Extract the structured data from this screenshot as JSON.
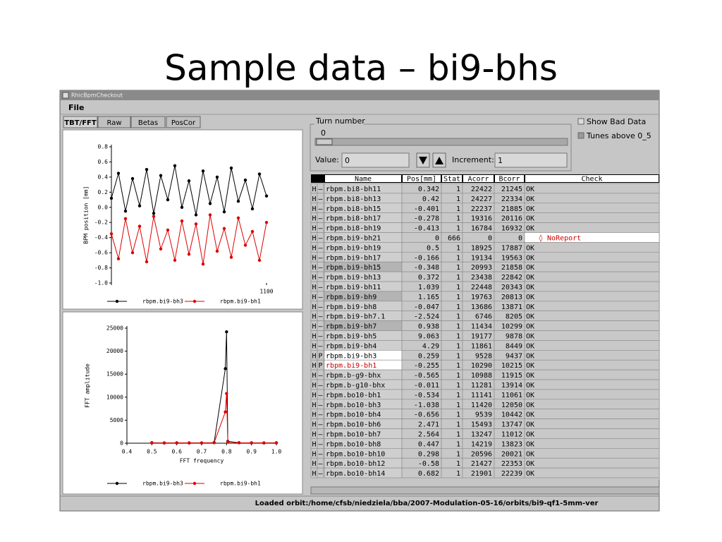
{
  "slide_title": "Sample data – bi9-bhs",
  "window": {
    "title": "RhicBpmCheckout",
    "menu": "File",
    "tabs": [
      "TBT/FFT",
      "Raw",
      "Betas",
      "PosCor"
    ]
  },
  "controls": {
    "turn_label": "Turn number",
    "turn_value": "0",
    "value_label": "Value:",
    "value": "0",
    "increment_label": "Increment:",
    "increment": "1",
    "show_bad": "Show Bad Data",
    "tunes": "Tunes above 0_5"
  },
  "table": {
    "columns": [
      "Name",
      "Pos[mm]",
      "Stat",
      "Acorr",
      "Bcorr",
      "Check"
    ],
    "rows": [
      {
        "flag": "H",
        "mode": "–",
        "name": "rbpm.bi8-bh11",
        "pos": "0.342",
        "stat": "1",
        "acorr": "22422",
        "bcorr": "21245",
        "check": "OK"
      },
      {
        "flag": "H",
        "mode": "–",
        "name": "rbpm.bi8-bh13",
        "pos": "0.42",
        "stat": "1",
        "acorr": "24227",
        "bcorr": "22334",
        "check": "OK"
      },
      {
        "flag": "H",
        "mode": "–",
        "name": "rbpm.bi8-bh15",
        "pos": "-0.401",
        "stat": "1",
        "acorr": "22237",
        "bcorr": "21885",
        "check": "OK"
      },
      {
        "flag": "H",
        "mode": "–",
        "name": "rbpm.bi8-bh17",
        "pos": "-0.278",
        "stat": "1",
        "acorr": "19316",
        "bcorr": "20116",
        "check": "OK"
      },
      {
        "flag": "H",
        "mode": "–",
        "name": "rbpm.bi8-bh19",
        "pos": "-0.413",
        "stat": "1",
        "acorr": "16784",
        "bcorr": "16932",
        "check": "OK"
      },
      {
        "flag": "H",
        "mode": "–",
        "name": "rbpm.bi9-bh21",
        "pos": "0",
        "stat": "666",
        "acorr": "0",
        "bcorr": "0",
        "check": "◊ NoReport",
        "check_bg": "#ffffff",
        "check_color": "#cc0000"
      },
      {
        "flag": "H",
        "mode": "–",
        "name": "rbpm.bi9-bh19",
        "pos": "0.5",
        "stat": "1",
        "acorr": "18925",
        "bcorr": "17887",
        "check": "OK"
      },
      {
        "flag": "H",
        "mode": "–",
        "name": "rbpm.bi9-bh17",
        "pos": "-0.166",
        "stat": "1",
        "acorr": "19134",
        "bcorr": "19563",
        "check": "OK"
      },
      {
        "flag": "H",
        "mode": "–",
        "name": "rbpm.bi9-bh15",
        "pos": "-0.348",
        "stat": "1",
        "acorr": "20993",
        "bcorr": "21858",
        "check": "OK",
        "name_bg": "#b4b4b4"
      },
      {
        "flag": "H",
        "mode": "–",
        "name": "rbpm.bi9-bh13",
        "pos": "0.372",
        "stat": "1",
        "acorr": "23438",
        "bcorr": "22842",
        "check": "OK"
      },
      {
        "flag": "H",
        "mode": "–",
        "name": "rbpm.bi9-bh11",
        "pos": "1.039",
        "stat": "1",
        "acorr": "22448",
        "bcorr": "20343",
        "check": "OK"
      },
      {
        "flag": "H",
        "mode": "–",
        "name": "rbpm.bi9-bh9",
        "pos": "1.165",
        "stat": "1",
        "acorr": "19763",
        "bcorr": "20813",
        "check": "OK",
        "name_bg": "#b4b4b4"
      },
      {
        "flag": "H",
        "mode": "–",
        "name": "rbpm.bi9-bh8",
        "pos": "-0.047",
        "stat": "1",
        "acorr": "13686",
        "bcorr": "13871",
        "check": "OK"
      },
      {
        "flag": "H",
        "mode": "–",
        "name": "rbpm.bi9-bh7.1",
        "pos": "-2.524",
        "stat": "1",
        "acorr": "6746",
        "bcorr": "8205",
        "check": "OK"
      },
      {
        "flag": "H",
        "mode": "–",
        "name": "rbpm.bi9-bh7",
        "pos": "0.938",
        "stat": "1",
        "acorr": "11434",
        "bcorr": "10299",
        "check": "OK",
        "name_bg": "#b4b4b4"
      },
      {
        "flag": "H",
        "mode": "–",
        "name": "rbpm.bi9-bh5",
        "pos": "9.063",
        "stat": "1",
        "acorr": "19177",
        "bcorr": "9878",
        "check": "OK"
      },
      {
        "flag": "H",
        "mode": "–",
        "name": "rbpm.bi9-bh4",
        "pos": "4.29",
        "stat": "1",
        "acorr": "11861",
        "bcorr": "8449",
        "check": "OK"
      },
      {
        "flag": "H",
        "mode": "P",
        "name": "rbpm.bi9-bh3",
        "pos": "0.259",
        "stat": "1",
        "acorr": "9528",
        "bcorr": "9437",
        "check": "OK",
        "name_bg": "#ffffff"
      },
      {
        "flag": "H",
        "mode": "P",
        "name": "rbpm.bi9-bh1",
        "pos": "-0.255",
        "stat": "1",
        "acorr": "10290",
        "bcorr": "10215",
        "check": "OK",
        "name_bg": "#ffffff",
        "name_color": "#cc0000"
      },
      {
        "flag": "H",
        "mode": "–",
        "name": "rbpm.b-g9-bhx",
        "pos": "-0.565",
        "stat": "1",
        "acorr": "10988",
        "bcorr": "11915",
        "check": "OK"
      },
      {
        "flag": "H",
        "mode": "–",
        "name": "rbpm.b-g10-bhx",
        "pos": "-0.011",
        "stat": "1",
        "acorr": "11281",
        "bcorr": "13914",
        "check": "OK"
      },
      {
        "flag": "H",
        "mode": "–",
        "name": "rbpm.bo10-bh1",
        "pos": "-0.534",
        "stat": "1",
        "acorr": "11141",
        "bcorr": "11061",
        "check": "OK"
      },
      {
        "flag": "H",
        "mode": "–",
        "name": "rbpm.bo10-bh3",
        "pos": "-1.038",
        "stat": "1",
        "acorr": "11420",
        "bcorr": "12050",
        "check": "OK"
      },
      {
        "flag": "H",
        "mode": "–",
        "name": "rbpm.bo10-bh4",
        "pos": "-0.656",
        "stat": "1",
        "acorr": "9539",
        "bcorr": "10442",
        "check": "OK"
      },
      {
        "flag": "H",
        "mode": "–",
        "name": "rbpm.bo10-bh6",
        "pos": "2.471",
        "stat": "1",
        "acorr": "15493",
        "bcorr": "13747",
        "check": "OK"
      },
      {
        "flag": "H",
        "mode": "–",
        "name": "rbpm.bo10-bh7",
        "pos": "2.564",
        "stat": "1",
        "acorr": "13247",
        "bcorr": "11012",
        "check": "OK"
      },
      {
        "flag": "H",
        "mode": "–",
        "name": "rbpm.bo10-bh8",
        "pos": "0.447",
        "stat": "1",
        "acorr": "14219",
        "bcorr": "13823",
        "check": "OK"
      },
      {
        "flag": "H",
        "mode": "–",
        "name": "rbpm.bo10-bh10",
        "pos": "0.298",
        "stat": "1",
        "acorr": "20596",
        "bcorr": "20021",
        "check": "OK"
      },
      {
        "flag": "H",
        "mode": "–",
        "name": "rbpm.bo10-bh12",
        "pos": "-0.58",
        "stat": "1",
        "acorr": "21427",
        "bcorr": "22353",
        "check": "OK"
      },
      {
        "flag": "H",
        "mode": "–",
        "name": "rbpm.bo10-bh14",
        "pos": "0.682",
        "stat": "1",
        "acorr": "21901",
        "bcorr": "22239",
        "check": "OK"
      }
    ]
  },
  "status": "Loaded orbit:/home/cfsb/niedziela/bba/2007-Modulation-05-16/orbits/bi9-qf1-5mm-ver",
  "chart_data": [
    {
      "type": "line",
      "ylabel": "BPM position [mm]",
      "x": [
        0,
        50,
        100,
        150,
        200,
        250,
        300,
        350,
        400,
        450,
        500,
        550,
        600,
        650,
        700,
        750,
        800,
        850,
        900,
        950,
        1000,
        1050,
        1100
      ],
      "xlim": [
        0,
        1100
      ],
      "xticks": [
        1100
      ],
      "ylim": [
        -1,
        0.8
      ],
      "yticks": [
        0.8,
        0.6,
        0.4,
        0.2,
        {
          "value": 0,
          "label": "0.0"
        },
        -0.2,
        -0.4,
        -0.6,
        -0.8,
        {
          "value": -1,
          "label": "-1.0"
        }
      ],
      "series": [
        {
          "name": "rbpm.bi9-bh3",
          "color": "#000000",
          "values": [
            0.12,
            0.45,
            -0.05,
            0.38,
            0.02,
            0.5,
            -0.08,
            0.42,
            0.1,
            0.55,
            0.0,
            0.35,
            -0.1,
            0.48,
            0.05,
            0.4,
            -0.06,
            0.52,
            0.08,
            0.36,
            -0.02,
            0.44,
            0.15
          ]
        },
        {
          "name": "rbpm.bi9-bh1",
          "color": "#dd0000",
          "values": [
            -0.35,
            -0.68,
            -0.15,
            -0.6,
            -0.25,
            -0.72,
            -0.12,
            -0.55,
            -0.3,
            -0.7,
            -0.18,
            -0.62,
            -0.22,
            -0.75,
            -0.1,
            -0.58,
            -0.28,
            -0.66,
            -0.14,
            -0.5,
            -0.32,
            -0.7,
            -0.2
          ]
        }
      ]
    },
    {
      "type": "line",
      "xlabel": "FFT frequency",
      "ylabel": "FFT amplitude",
      "x": [
        0.5,
        0.55,
        0.6,
        0.65,
        0.7,
        0.75,
        0.795,
        0.8,
        0.805,
        0.85,
        0.9,
        0.95,
        1.0
      ],
      "xlim": [
        0.4,
        1.0
      ],
      "xticks": [
        0.4,
        0.5,
        0.6,
        0.7,
        0.8,
        0.9,
        {
          "value": 1,
          "label": "1.0"
        }
      ],
      "ylim": [
        0,
        25000
      ],
      "yticks": [
        0,
        5000,
        10000,
        15000,
        20000,
        25000
      ],
      "series": [
        {
          "name": "rbpm.bi9-bh3",
          "color": "#000000",
          "values": [
            100,
            50,
            80,
            60,
            70,
            120,
            16200,
            24200,
            400,
            100,
            80,
            60,
            90
          ]
        },
        {
          "name": "rbpm.bi9-bh1",
          "color": "#dd0000",
          "values": [
            80,
            60,
            70,
            50,
            60,
            100,
            6800,
            10800,
            300,
            90,
            70,
            50,
            80
          ]
        }
      ]
    }
  ]
}
